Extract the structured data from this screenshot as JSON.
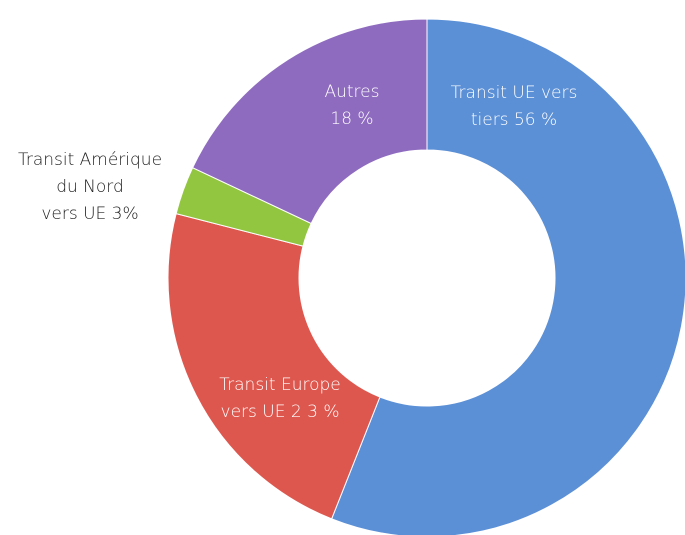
{
  "chart_data": {
    "type": "donut",
    "categories": [
      "Transit UE vers tiers",
      "Transit Europe vers UE",
      "Transit Amérique du Nord vers UE",
      "Autres"
    ],
    "values": [
      56,
      23,
      3,
      18
    ],
    "labels": [
      [
        "Transit UE vers",
        "tiers 56 %"
      ],
      [
        "Transit Europe",
        "vers UE 2 3 %"
      ],
      [
        "Transit Amérique",
        "du Nord",
        "vers UE 3%"
      ],
      [
        "Autres",
        "18 %"
      ]
    ],
    "colors": [
      "#5b8fd6",
      "#de574e",
      "#92c540",
      "#8e6bbf"
    ]
  }
}
